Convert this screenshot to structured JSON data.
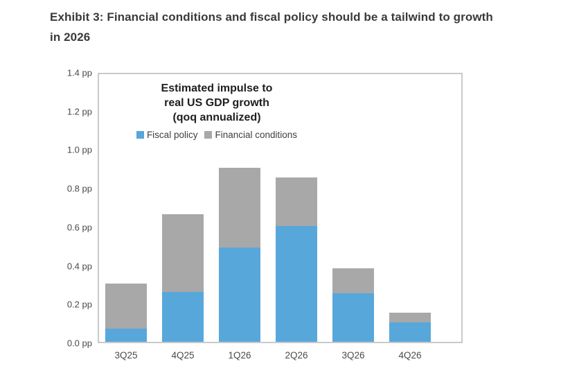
{
  "exhibit": {
    "title": "Exhibit 3: Financial conditions and fiscal policy should be a tailwind to growth in 2026",
    "title_lines": [
      "Exhibit 3: Financial conditions and fiscal policy should be a tailwind to growth",
      "in 2026"
    ]
  },
  "chart": {
    "inner_title_lines": [
      "Estimated impulse to",
      "real US GDP growth",
      "(qoq annualized)"
    ]
  },
  "chart_data": {
    "type": "bar",
    "stacked": true,
    "title": "Estimated impulse to real US GDP growth (qoq annualized)",
    "categories": [
      "3Q25",
      "4Q25",
      "1Q26",
      "2Q26",
      "3Q26",
      "4Q26"
    ],
    "series": [
      {
        "name": "Fiscal policy",
        "color": "#58a7db",
        "values": [
          0.07,
          0.26,
          0.49,
          0.6,
          0.25,
          0.1
        ]
      },
      {
        "name": "Financial conditions",
        "color": "#a8a8a8",
        "values": [
          0.23,
          0.4,
          0.41,
          0.25,
          0.13,
          0.05
        ]
      }
    ],
    "totals": [
      0.3,
      0.66,
      0.9,
      0.85,
      0.38,
      0.15
    ],
    "ylim": [
      0.0,
      1.4
    ],
    "ytick_step": 0.2,
    "ytick_suffix": " pp",
    "xlabel": "",
    "ylabel": "",
    "grid": false,
    "legend_position": "inside-top-left"
  }
}
